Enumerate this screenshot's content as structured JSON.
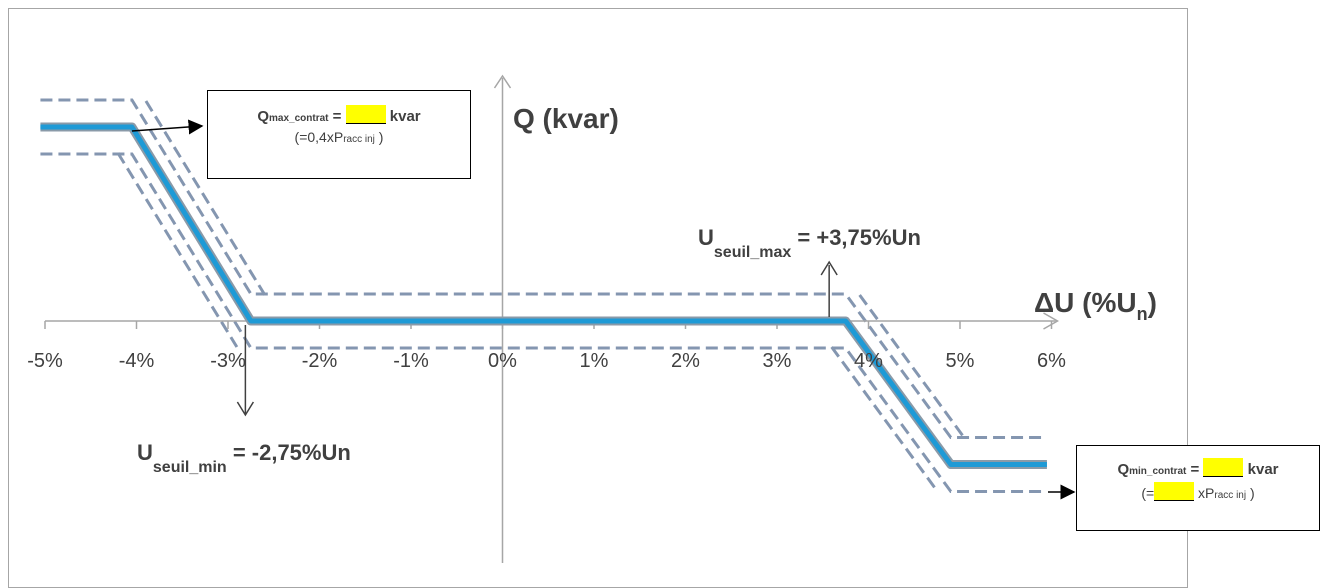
{
  "chart_data": {
    "type": "line",
    "xlabel": "ΔU (%U",
    "xlabel_sub": "n",
    "xlabel_close": ")",
    "ylabel": "Q (kvar)",
    "xlim": [
      -5,
      6
    ],
    "tick_labels": [
      "-5%",
      "-4%",
      "-3%",
      "-2%",
      "-1%",
      "0%",
      "1%",
      "2%",
      "3%",
      "4%",
      "5%",
      "6%"
    ],
    "grid": false,
    "series": [
      {
        "color": "#1e9ad6",
        "points": [
          [
            -5.05,
            1
          ],
          [
            -4.05,
            1
          ],
          [
            -2.75,
            0
          ],
          [
            3.75,
            0
          ],
          [
            4.9,
            -0.74
          ],
          [
            5.95,
            -0.74
          ]
        ]
      }
    ],
    "annotations": {
      "useuil_max": {
        "main": "U",
        "sub": "seuil_max",
        "value": " = +3,75%Un"
      },
      "useuil_min": {
        "main": "U",
        "sub": "seuil_min",
        "value": " = -2,75%Un"
      }
    }
  },
  "qmax_box": {
    "q": "Q",
    "q_sub": "max_contrat",
    "eq": " = ",
    "unit": " kvar",
    "line2_open": "(=0,4xP",
    "line2_sub": "racc inj",
    "line2_close": " )"
  },
  "qmin_box": {
    "q": "Q",
    "q_sub": "min_contrat",
    "eq": " = ",
    "unit": " kvar",
    "line2_open": "(=",
    "line2_mid": " xP",
    "line2_sub": "racc inj",
    "line2_close": " )"
  },
  "colors": {
    "curve": "#1e9ad6",
    "tolerance": "#8496b0",
    "axis": "#a6a6a6",
    "highlight": "#ffff00"
  }
}
